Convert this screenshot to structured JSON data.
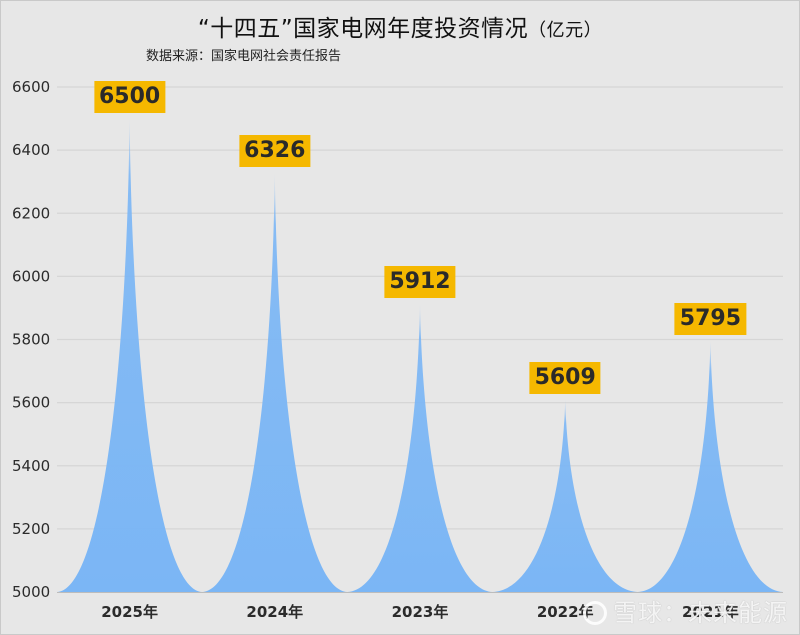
{
  "title": "“十四五”国家电网年度投资情况",
  "title_unit": "（亿元）",
  "subtitle": "数据来源：国家电网社会责任报告",
  "watermark": "雪球：未来能源",
  "colors": {
    "background": "#e7e7e7",
    "fill": "#7bb6f5",
    "label_bg": "#f5b800",
    "grid": "#d6d6d6"
  },
  "chart_data": {
    "type": "area",
    "subtype": "spike/pictorial-peak",
    "title": "“十四五”国家电网年度投资情况（亿元）",
    "subtitle": "数据来源：国家电网社会责任报告",
    "categories": [
      "2025年",
      "2024年",
      "2023年",
      "2022年",
      "2021年"
    ],
    "values": [
      6500,
      6326,
      5912,
      5609,
      5795
    ],
    "data_labels": [
      "6500",
      "6326",
      "5912",
      "5609",
      "5795"
    ],
    "xlabel": "",
    "ylabel": "",
    "ylim": [
      5000,
      6600
    ],
    "yticks": [
      "5000",
      "5200",
      "5400",
      "5600",
      "5800",
      "6000",
      "6200",
      "6400",
      "6600"
    ],
    "grid": true,
    "legend": "none"
  }
}
